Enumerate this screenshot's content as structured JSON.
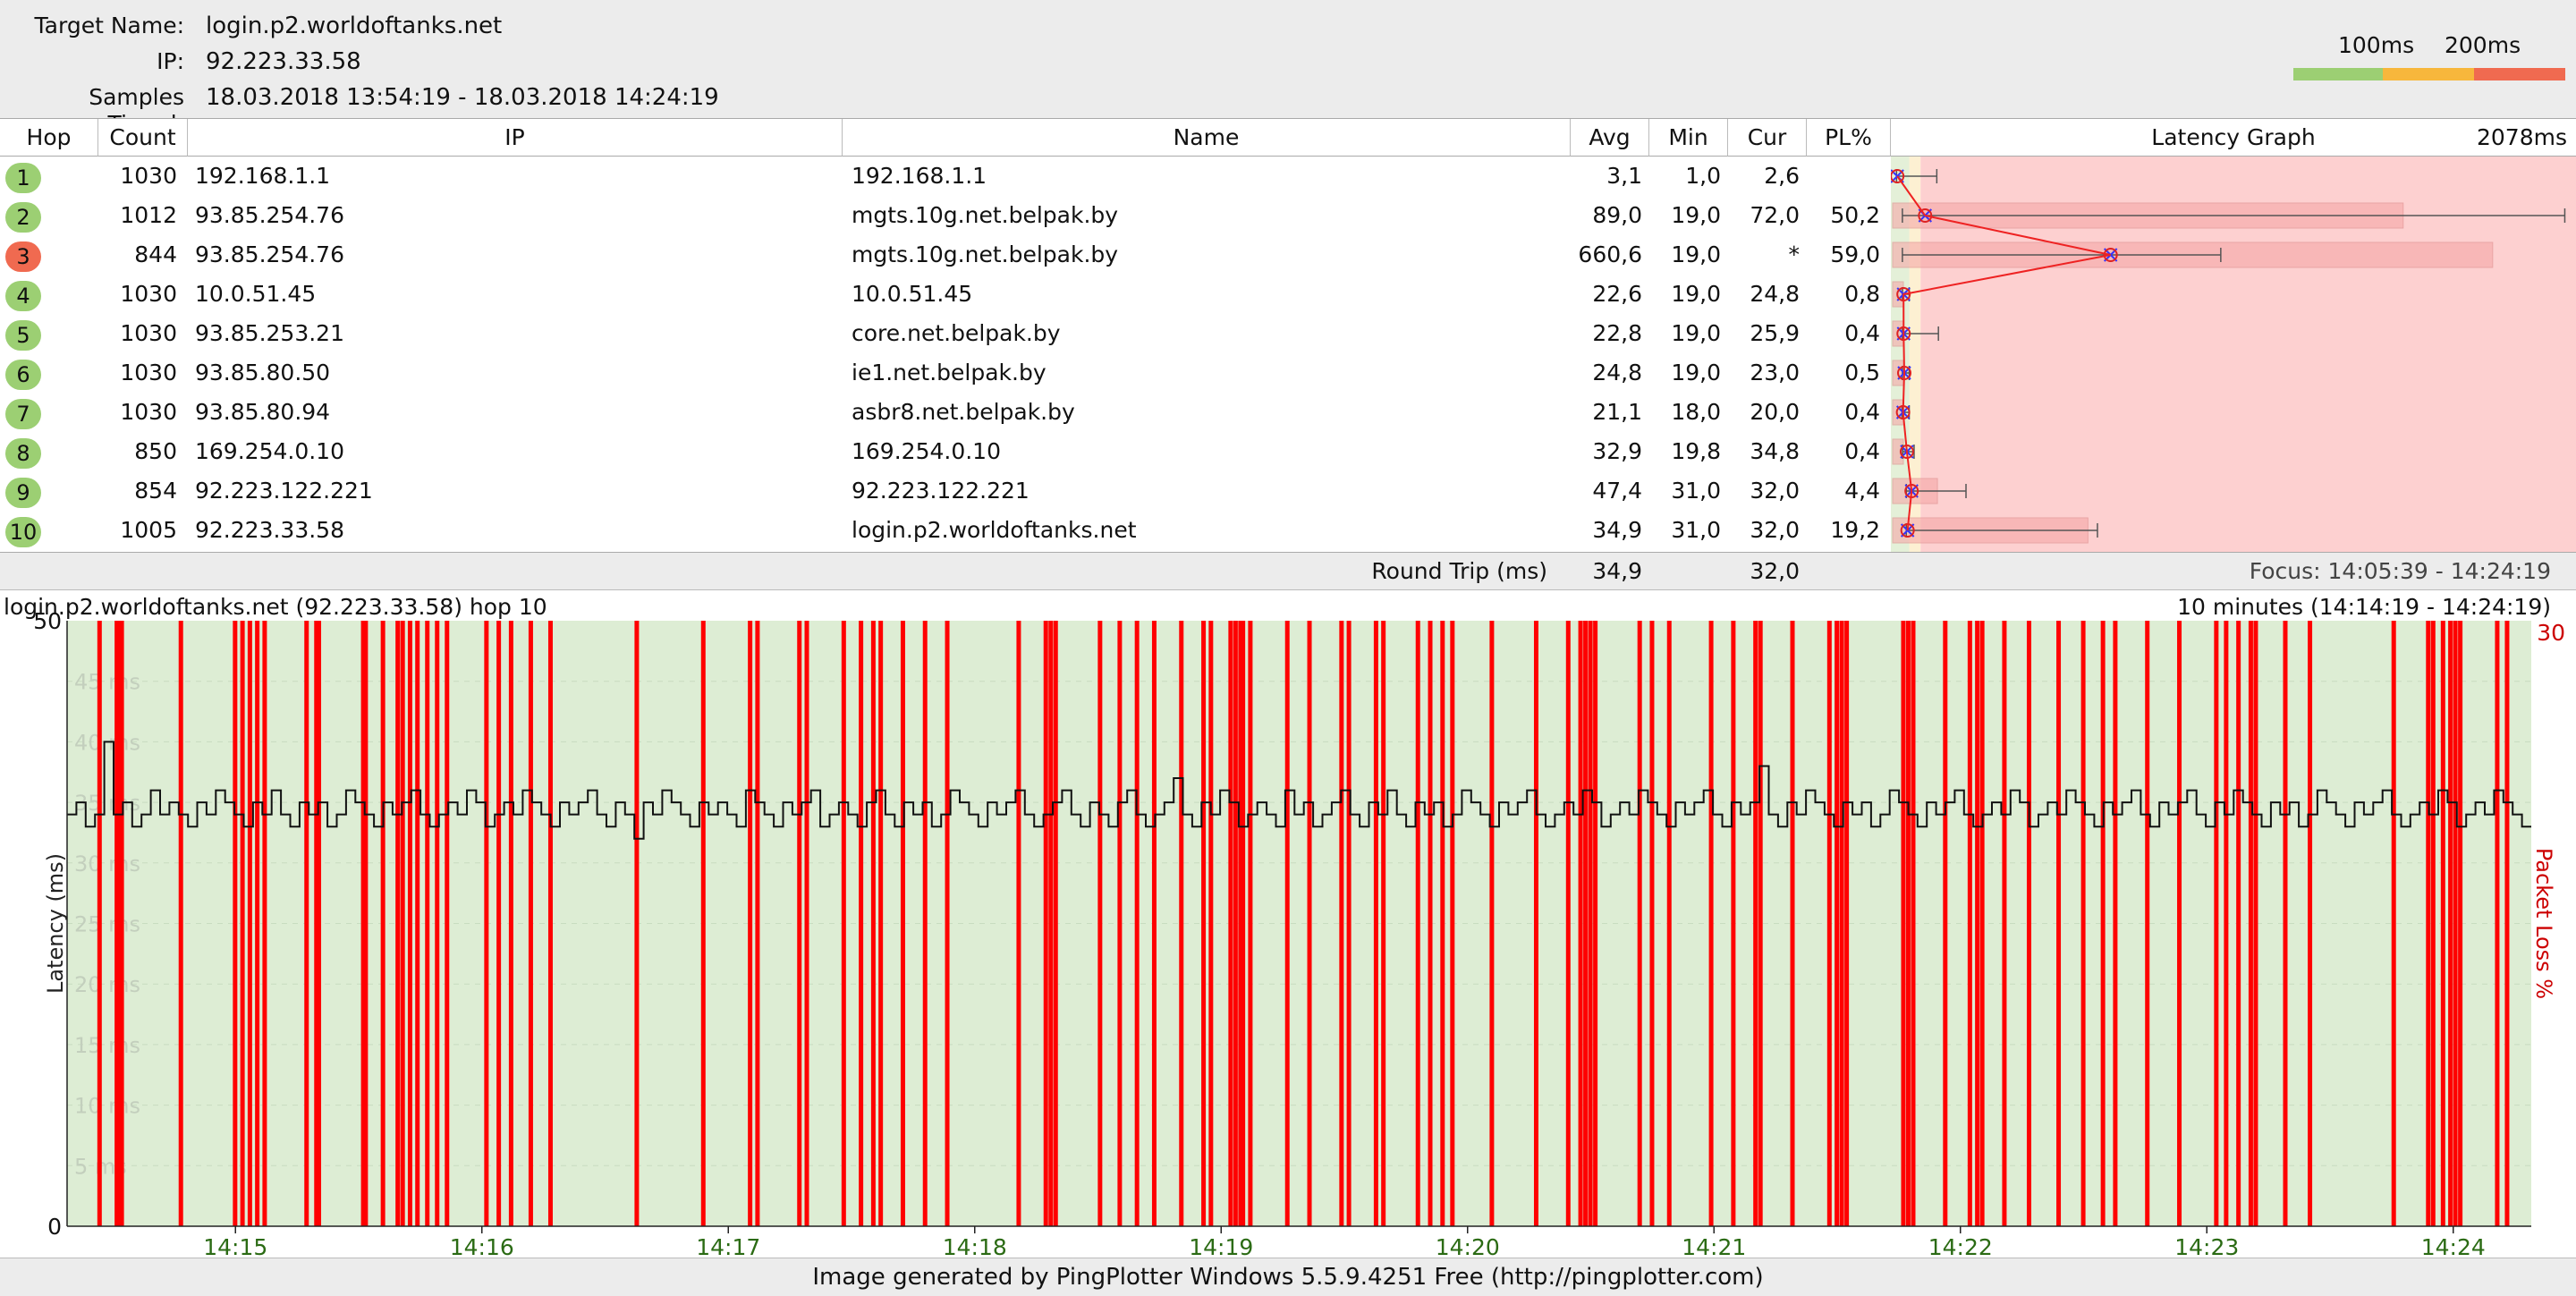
{
  "header": {
    "target_label": "Target Name:",
    "target_value": "login.p2.worldoftanks.net",
    "ip_label": "IP:",
    "ip_value": "92.223.33.58",
    "samples_label": "Samples Timed:",
    "samples_value": "18.03.2018 13:54:19 - 18.03.2018 14:24:19",
    "legend_100": "100ms",
    "legend_200": "200ms",
    "legend_colors": [
      "#9ccf73",
      "#f7b73c",
      "#f06a50"
    ]
  },
  "table": {
    "columns": {
      "hop": "Hop",
      "count": "Count",
      "ip": "IP",
      "name": "Name",
      "avg": "Avg",
      "min": "Min",
      "cur": "Cur",
      "pl": "PL%",
      "graph": "Latency Graph",
      "graph_max": "2078ms"
    },
    "rows": [
      {
        "hop": "1",
        "count": "1030",
        "ip": "192.168.1.1",
        "name": "192.168.1.1",
        "avg": "3,1",
        "min": "1,0",
        "cur": "2,6",
        "pl": "",
        "status": "ok"
      },
      {
        "hop": "2",
        "count": "1012",
        "ip": "93.85.254.76",
        "name": "mgts.10g.net.belpak.by",
        "avg": "89,0",
        "min": "19,0",
        "cur": "72,0",
        "pl": "50,2",
        "status": "ok"
      },
      {
        "hop": "3",
        "count": "844",
        "ip": "93.85.254.76",
        "name": "mgts.10g.net.belpak.by",
        "avg": "660,6",
        "min": "19,0",
        "cur": "*",
        "pl": "59,0",
        "status": "bad"
      },
      {
        "hop": "4",
        "count": "1030",
        "ip": "10.0.51.45",
        "name": "10.0.51.45",
        "avg": "22,6",
        "min": "19,0",
        "cur": "24,8",
        "pl": "0,8",
        "status": "ok"
      },
      {
        "hop": "5",
        "count": "1030",
        "ip": "93.85.253.21",
        "name": "core.net.belpak.by",
        "avg": "22,8",
        "min": "19,0",
        "cur": "25,9",
        "pl": "0,4",
        "status": "ok"
      },
      {
        "hop": "6",
        "count": "1030",
        "ip": "93.85.80.50",
        "name": "ie1.net.belpak.by",
        "avg": "24,8",
        "min": "19,0",
        "cur": "23,0",
        "pl": "0,5",
        "status": "ok"
      },
      {
        "hop": "7",
        "count": "1030",
        "ip": "93.85.80.94",
        "name": "asbr8.net.belpak.by",
        "avg": "21,1",
        "min": "18,0",
        "cur": "20,0",
        "pl": "0,4",
        "status": "ok"
      },
      {
        "hop": "8",
        "count": "850",
        "ip": "169.254.0.10",
        "name": "169.254.0.10",
        "avg": "32,9",
        "min": "19,8",
        "cur": "34,8",
        "pl": "0,4",
        "status": "ok"
      },
      {
        "hop": "9",
        "count": "854",
        "ip": "92.223.122.221",
        "name": "92.223.122.221",
        "avg": "47,4",
        "min": "31,0",
        "cur": "32,0",
        "pl": "4,4",
        "status": "ok"
      },
      {
        "hop": "10",
        "count": "1005",
        "ip": "92.223.33.58",
        "name": "login.p2.worldoftanks.net",
        "avg": "34,9",
        "min": "31,0",
        "cur": "32,0",
        "pl": "19,2",
        "status": "ok"
      }
    ],
    "status_colors": {
      "ok": "#9ccf73",
      "bad": "#f06a50"
    },
    "hop_graph": {
      "scale_max_ms": 2078,
      "hops": [
        {
          "min": 1.0,
          "avg": 3.1,
          "max": 125,
          "pl": 0
        },
        {
          "min": 19.0,
          "avg": 89.0,
          "max": 2060,
          "pl": 50.2
        },
        {
          "min": 19.0,
          "avg": 660.6,
          "max": 1000,
          "pl": 59.0
        },
        {
          "min": 19.0,
          "avg": 22.6,
          "max": 40,
          "pl": 0.8
        },
        {
          "min": 19.0,
          "avg": 22.8,
          "max": 130,
          "pl": 0.4
        },
        {
          "min": 19.0,
          "avg": 24.8,
          "max": 40,
          "pl": 0.5
        },
        {
          "min": 18.0,
          "avg": 21.1,
          "max": 40,
          "pl": 0.4
        },
        {
          "min": 19.8,
          "avg": 32.9,
          "max": 55,
          "pl": 0.4
        },
        {
          "min": 31.0,
          "avg": 47.4,
          "max": 215,
          "pl": 4.4
        },
        {
          "min": 31.0,
          "avg": 34.9,
          "max": 620,
          "pl": 19.2
        }
      ]
    }
  },
  "roundtrip": {
    "label": "Round Trip (ms)",
    "avg": "34,9",
    "cur": "32,0",
    "focus": "Focus: 14:05:39 - 14:24:19"
  },
  "timeline": {
    "title": "login.p2.worldoftanks.net (92.223.33.58) hop 10",
    "range": "10 minutes (14:14:19 - 14:24:19)",
    "y_axis_label": "Latency (ms)",
    "y2_axis_label": "Packet Loss %",
    "y2_max_label": "30"
  },
  "chart_data": {
    "type": "line",
    "title": "login.p2.worldoftanks.net (92.223.33.58) hop 10",
    "xlabel": "",
    "ylabel": "Latency (ms)",
    "y2label": "Packet Loss %",
    "ylim": [
      0,
      50
    ],
    "y2lim": [
      0,
      30
    ],
    "y_ticks": [
      "50",
      "45 ms",
      "40 ms",
      "35 ms",
      "30 ms",
      "25 ms",
      "20 ms",
      "15 ms",
      "10 ms",
      "5 ms",
      "0"
    ],
    "x_ticks": [
      "14:15",
      "14:16",
      "14:17",
      "14:18",
      "14:19",
      "14:20",
      "14:21",
      "14:22",
      "14:23",
      "14:24"
    ],
    "x_range_minutes": [
      14.3167,
      24.3167
    ],
    "series": [
      {
        "x_start": "14:14:19",
        "x_step_seconds": 2.5,
        "values": [
          34,
          35,
          33,
          34,
          40,
          34,
          35,
          33,
          34,
          36,
          34,
          35,
          34,
          33,
          35,
          34,
          36,
          35,
          34,
          33,
          35,
          34,
          36,
          34,
          33,
          35,
          34,
          35,
          33,
          34,
          36,
          35,
          34,
          33,
          35,
          34,
          35,
          36,
          34,
          33,
          34,
          35,
          34,
          36,
          35,
          33,
          34,
          35,
          34,
          36,
          35,
          34,
          33,
          35,
          34,
          35,
          36,
          34,
          33,
          35,
          34,
          32,
          35,
          34,
          36,
          35,
          34,
          33,
          35,
          34,
          35,
          34,
          33,
          36,
          35,
          34,
          33,
          35,
          34,
          35,
          36,
          33,
          34,
          35,
          34,
          33,
          35,
          36,
          34,
          33,
          35,
          34,
          35,
          33,
          34,
          36,
          35,
          34,
          33,
          35,
          34,
          35,
          36,
          34,
          33,
          34,
          35,
          36,
          34,
          33,
          35,
          34,
          33,
          35,
          36,
          34,
          33,
          34,
          35,
          37,
          34,
          33,
          35,
          34,
          36,
          35,
          33,
          34,
          35,
          34,
          33,
          36,
          34,
          35,
          33,
          34,
          35,
          36,
          34,
          33,
          35,
          34,
          36,
          34,
          33,
          35,
          34,
          35,
          33,
          34,
          36,
          35,
          34,
          33,
          35,
          34,
          35,
          36,
          34,
          33,
          34,
          35,
          34,
          36,
          35,
          33,
          34,
          35,
          34,
          36,
          35,
          34,
          33,
          35,
          34,
          35,
          36,
          34,
          33,
          35,
          34,
          35,
          38,
          34,
          33,
          35,
          34,
          36,
          35,
          34,
          33,
          35,
          34,
          35,
          33,
          34,
          36,
          35,
          34,
          33,
          35,
          34,
          35,
          36,
          34,
          33,
          34,
          35,
          34,
          36,
          35,
          33,
          34,
          35,
          34,
          36,
          35,
          34,
          33,
          35,
          34,
          35,
          36,
          34,
          33,
          35,
          34,
          35,
          36,
          34,
          33,
          35,
          34,
          36,
          35,
          34,
          33,
          35,
          34,
          35,
          33,
          34,
          36,
          35,
          34,
          33,
          35,
          34,
          35,
          36,
          34,
          33,
          34,
          35,
          34,
          36,
          35,
          33,
          34,
          35,
          34,
          36,
          35,
          34,
          33
        ]
      }
    ],
    "loss_x_fraction": [
      0.013,
      0.02,
      0.021,
      0.022,
      0.046,
      0.068,
      0.071,
      0.074,
      0.077,
      0.08,
      0.097,
      0.101,
      0.102,
      0.12,
      0.121,
      0.128,
      0.134,
      0.136,
      0.139,
      0.142,
      0.146,
      0.15,
      0.154,
      0.17,
      0.175,
      0.18,
      0.188,
      0.196,
      0.231,
      0.258,
      0.277,
      0.28,
      0.297,
      0.3,
      0.315,
      0.322,
      0.327,
      0.33,
      0.339,
      0.348,
      0.357,
      0.386,
      0.397,
      0.399,
      0.401,
      0.419,
      0.427,
      0.434,
      0.441,
      0.452,
      0.461,
      0.464,
      0.472,
      0.474,
      0.476,
      0.477,
      0.48,
      0.495,
      0.504,
      0.517,
      0.52,
      0.531,
      0.534,
      0.548,
      0.553,
      0.558,
      0.562,
      0.578,
      0.596,
      0.609,
      0.614,
      0.616,
      0.618,
      0.62,
      0.638,
      0.643,
      0.65,
      0.667,
      0.676,
      0.685,
      0.687,
      0.7,
      0.715,
      0.718,
      0.72,
      0.722,
      0.745,
      0.747,
      0.749,
      0.762,
      0.772,
      0.775,
      0.777,
      0.786,
      0.796,
      0.808,
      0.818,
      0.826,
      0.831,
      0.844,
      0.857,
      0.872,
      0.876,
      0.881,
      0.886,
      0.888,
      0.9,
      0.91,
      0.944,
      0.958,
      0.96,
      0.964,
      0.967,
      0.969,
      0.971,
      0.986,
      0.99
    ]
  }
}
